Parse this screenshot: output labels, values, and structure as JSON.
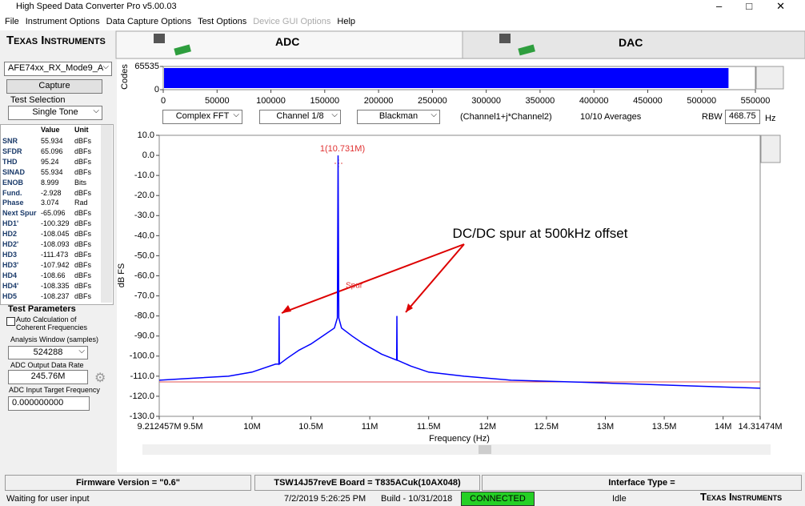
{
  "window": {
    "title": "High Speed Data Converter Pro v5.00.03"
  },
  "menu": [
    "File",
    "Instrument Options",
    "Data Capture Options",
    "Test Options",
    "Device GUI Options",
    "Help"
  ],
  "logo": "Texas Instruments",
  "tabs": [
    "ADC",
    "DAC"
  ],
  "left_panel": {
    "device": "AFE74xx_RX_Mode9_A",
    "capture_button": "Capture",
    "test_selection_label": "Test Selection",
    "test_selection": "Single Tone",
    "table": {
      "columns": [
        "Value",
        "Unit"
      ],
      "rows": [
        [
          "SNR",
          "55.934",
          "dBFs"
        ],
        [
          "SFDR",
          "65.096",
          "dBFs"
        ],
        [
          "THD",
          "95.24",
          "dBFs"
        ],
        [
          "SINAD",
          "55.934",
          "dBFs"
        ],
        [
          "ENOB",
          "8.999",
          "Bits"
        ],
        [
          "Fund.",
          "-2.928",
          "dBFs"
        ],
        [
          "Phase",
          "3.074",
          "Rad"
        ],
        [
          "Next Spur",
          "-65.096",
          "dBFs"
        ],
        [
          "HD1'",
          "-100.329",
          "dBFs"
        ],
        [
          "HD2",
          "-108.045",
          "dBFs"
        ],
        [
          "HD2'",
          "-108.093",
          "dBFs"
        ],
        [
          "HD3",
          "-111.473",
          "dBFs"
        ],
        [
          "HD3'",
          "-107.942",
          "dBFs"
        ],
        [
          "HD4",
          "-108.66",
          "dBFs"
        ],
        [
          "HD4'",
          "-108.335",
          "dBFs"
        ],
        [
          "HD5",
          "-108.237",
          "dBFs"
        ]
      ]
    },
    "test_parameters": {
      "title": "Test Parameters",
      "auto_calc": "Auto Calculation of Coherent Frequencies",
      "analysis_window_label": "Analysis Window (samples)",
      "analysis_window": 524288,
      "output_rate_label": "ADC Output Data Rate",
      "output_rate": "245.76M",
      "target_freq_label": "ADC Input Target Frequency",
      "target_freq": "0.000000000"
    }
  },
  "codes_plot": {
    "ylabel": "Codes",
    "xlim": [
      0,
      550000
    ],
    "ylim": [
      0,
      65535
    ],
    "yticks": [
      0,
      65535
    ],
    "xticks": [
      0,
      50000,
      100000,
      150000,
      200000,
      250000,
      300000,
      350000,
      400000,
      450000,
      500000,
      550000
    ],
    "color": "#0000ff"
  },
  "controls": {
    "fft_type": "Complex FFT",
    "channel": "Channel 1/8",
    "window": "Blackman",
    "formula": "(Channel1+j*Channel2)",
    "averages": "10/10 Averages",
    "rbw_label": "RBW",
    "rbw": "468.75",
    "rbw_unit": "Hz"
  },
  "chart_data": {
    "type": "line",
    "ylabel": "dB FS",
    "xlabel": "Frequency (Hz)",
    "xlim": [
      9212457,
      14314740
    ],
    "ylim": [
      -130,
      10
    ],
    "xticks": [
      {
        "value": 9212457,
        "label": "9.212457M"
      },
      {
        "value": 9500000,
        "label": "9.5M"
      },
      {
        "value": 10000000,
        "label": "10M"
      },
      {
        "value": 10500000,
        "label": "10.5M"
      },
      {
        "value": 11000000,
        "label": "11M"
      },
      {
        "value": 11500000,
        "label": "11.5M"
      },
      {
        "value": 12000000,
        "label": "12M"
      },
      {
        "value": 12500000,
        "label": "12.5M"
      },
      {
        "value": 13000000,
        "label": "13M"
      },
      {
        "value": 13500000,
        "label": "13.5M"
      },
      {
        "value": 14000000,
        "label": "14M"
      },
      {
        "value": 14314740,
        "label": "14.31474M"
      }
    ],
    "yticks": [
      {
        "value": 10,
        "label": "10.0"
      },
      {
        "value": 0,
        "label": "0.0"
      },
      {
        "value": -10,
        "label": "-10.0"
      },
      {
        "value": -20,
        "label": "-20.0"
      },
      {
        "value": -30,
        "label": "-30.0"
      },
      {
        "value": -40,
        "label": "-40.0"
      },
      {
        "value": -50,
        "label": "-50.0"
      },
      {
        "value": -60,
        "label": "-60.0"
      },
      {
        "value": -70,
        "label": "-70.0"
      },
      {
        "value": -80,
        "label": "-80.0"
      },
      {
        "value": -90,
        "label": "-90.0"
      },
      {
        "value": -100,
        "label": "-100.0"
      },
      {
        "value": -110,
        "label": "-110.0"
      },
      {
        "value": -120,
        "label": "-120.0"
      },
      {
        "value": -130,
        "label": "-130.0"
      }
    ],
    "x": [
      9212457,
      9500000,
      9800000,
      10000000,
      10200000,
      10228000,
      10230000,
      10232000,
      10300000,
      10400000,
      10500000,
      10600000,
      10700000,
      10725000,
      10731000,
      10737000,
      10760000,
      10850000,
      10950000,
      11100000,
      11228000,
      11230000,
      11232000,
      11350000,
      11500000,
      11800000,
      12200000,
      12800000,
      13300000,
      13800000,
      14314740
    ],
    "series": [
      {
        "color": "#0000ff",
        "values": [
          -112,
          -111,
          -110,
          -108,
          -104,
          -104,
          -80,
          -104,
          -101,
          -97,
          -94,
          -90,
          -86,
          -81,
          0,
          -81,
          -86,
          -90,
          -94,
          -99,
          -102,
          -80,
          -102,
          -105,
          -108,
          -110,
          -112,
          -113,
          -114,
          -115,
          -116
        ]
      }
    ],
    "annotations": {
      "marker": "1(10.731M)",
      "spur": "Spur",
      "callout": "DC/DC spur at 500kHz offset"
    }
  },
  "status": {
    "firmware": "Firmware Version = \"0.6\"",
    "board": "TSW14J57revE Board = T835ACuk(10AX048)",
    "interface": "Interface Type =",
    "message": "Waiting for user input",
    "datetime": "7/2/2019 5:26:25 PM",
    "build": "Build  - 10/31/2018",
    "connection": "CONNECTED",
    "state": "Idle"
  }
}
